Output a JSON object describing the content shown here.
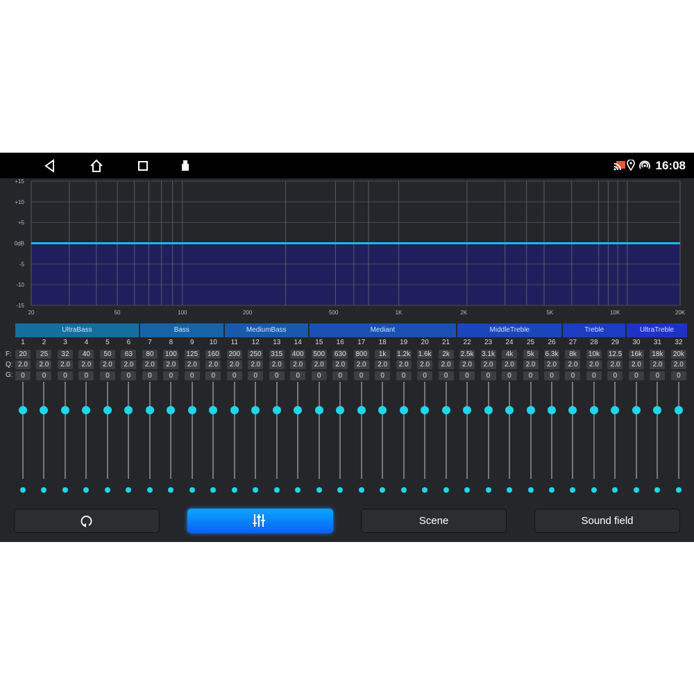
{
  "status_bar": {
    "time": "16:08",
    "icons": [
      "back-icon",
      "home-icon",
      "recents-icon",
      "usb-icon",
      "cast-icon",
      "location-icon",
      "hotspot-icon"
    ]
  },
  "chart_data": {
    "type": "line",
    "x_scale": "log",
    "xlim": [
      20,
      20000
    ],
    "ylim": [
      -15,
      15
    ],
    "x_ticks": [
      "20",
      "50",
      "100",
      "200",
      "500",
      "1K",
      "2K",
      "5K",
      "10K",
      "20K"
    ],
    "x_tick_values": [
      20,
      50,
      100,
      200,
      500,
      1000,
      2000,
      5000,
      10000,
      20000
    ],
    "y_ticks": [
      "+15",
      "+10",
      "+5",
      "0dB",
      "-5",
      "-10",
      "-15"
    ],
    "y_tick_values": [
      15,
      10,
      5,
      0,
      -5,
      -10,
      -15
    ],
    "grid_freqs": [
      30,
      40,
      50,
      60,
      70,
      80,
      90,
      100,
      300,
      510,
      620,
      725,
      1000,
      2070,
      3100,
      3900,
      4700,
      6300,
      8400,
      9300,
      10300,
      11400
    ],
    "series": [
      {
        "x": [
          20,
          20000
        ],
        "y": [
          0,
          0
        ]
      }
    ],
    "line_color": "#1ab8f0",
    "fill_color": "#1f1f5e",
    "grid": true
  },
  "band_groups": [
    {
      "label": "UltraBass",
      "from": 1,
      "to": 6
    },
    {
      "label": "Bass",
      "from": 7,
      "to": 10
    },
    {
      "label": "MediumBass",
      "from": 11,
      "to": 14
    },
    {
      "label": "Mediant",
      "from": 15,
      "to": 21
    },
    {
      "label": "MiddleTreble",
      "from": 22,
      "to": 26
    },
    {
      "label": "Treble",
      "from": 27,
      "to": 29
    },
    {
      "label": "UltraTreble",
      "from": 30,
      "to": 32
    }
  ],
  "row_labels": {
    "f": "F:",
    "q": "Q:",
    "g": "G:"
  },
  "eq": {
    "freqs": [
      "20",
      "25",
      "32",
      "40",
      "50",
      "63",
      "80",
      "100",
      "125",
      "160",
      "200",
      "250",
      "315",
      "400",
      "500",
      "630",
      "800",
      "1k",
      "1.2k",
      "1.6k",
      "2k",
      "2.5k",
      "3.1k",
      "4k",
      "5k",
      "6.3k",
      "8k",
      "10k",
      "12.5",
      "16k",
      "18k",
      "20k"
    ],
    "q": "2.0",
    "gain": "0",
    "gain_range": [
      -15,
      15
    ]
  },
  "buttons": {
    "reset_icon": "reset-icon",
    "eq_icon": "sliders-icon",
    "scene": "Scene",
    "sound_field": "Sound field"
  },
  "colors": {
    "accent": "#1fd6ea",
    "active_button": "#0a7cff"
  }
}
